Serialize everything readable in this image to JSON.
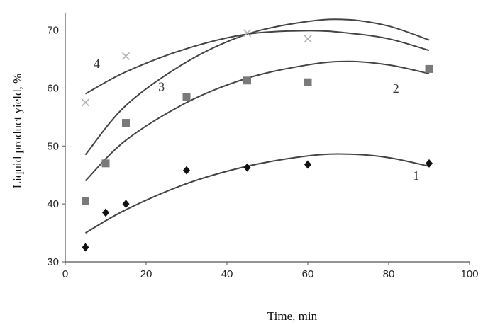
{
  "chart_data": {
    "type": "scatter",
    "xlabel": "Time, min",
    "ylabel": "Liquid product yield, %",
    "xlim": [
      0,
      100
    ],
    "ylim": [
      30,
      73
    ],
    "x_ticks": [
      0,
      20,
      40,
      60,
      80,
      100
    ],
    "y_ticks": [
      30,
      40,
      50,
      60,
      70
    ],
    "grid": false,
    "series": [
      {
        "name": "1",
        "marker": "diamond",
        "color": "#111111",
        "points": [
          [
            5,
            32.5
          ],
          [
            10,
            38.5
          ],
          [
            15,
            40
          ],
          [
            30,
            45.8
          ],
          [
            45,
            46.3
          ],
          [
            60,
            46.8
          ],
          [
            90,
            47
          ]
        ],
        "fit": [
          [
            5,
            35
          ],
          [
            15,
            39
          ],
          [
            30,
            43.5
          ],
          [
            45,
            46.5
          ],
          [
            60,
            48.3
          ],
          [
            70,
            48.6
          ],
          [
            80,
            48
          ],
          [
            90,
            46.5
          ]
        ]
      },
      {
        "name": "2",
        "marker": "square",
        "color": "#7a7a7a",
        "points": [
          [
            5,
            40.5
          ],
          [
            10,
            47
          ],
          [
            15,
            54
          ],
          [
            30,
            58.5
          ],
          [
            45,
            61.3
          ],
          [
            60,
            61
          ],
          [
            90,
            63.3
          ]
        ],
        "fit": [
          [
            5,
            44
          ],
          [
            15,
            51
          ],
          [
            30,
            57.5
          ],
          [
            45,
            61.7
          ],
          [
            60,
            64
          ],
          [
            70,
            64.6
          ],
          [
            80,
            64
          ],
          [
            90,
            62.5
          ]
        ]
      },
      {
        "name": "3",
        "marker": "none",
        "color": "#444444",
        "points": [],
        "fit": [
          [
            5,
            48.5
          ],
          [
            15,
            57
          ],
          [
            30,
            64.5
          ],
          [
            45,
            69.3
          ],
          [
            60,
            71.5
          ],
          [
            70,
            71.8
          ],
          [
            80,
            70.7
          ],
          [
            90,
            68.3
          ]
        ]
      },
      {
        "name": "4",
        "marker": "x",
        "color": "#b0b0b0",
        "points": [
          [
            5,
            57.5
          ],
          [
            15,
            65.5
          ],
          [
            45,
            69.5
          ],
          [
            60,
            68.5
          ]
        ],
        "fit": [
          [
            5,
            59
          ],
          [
            15,
            62.8
          ],
          [
            30,
            66.8
          ],
          [
            45,
            69.3
          ],
          [
            60,
            69.9
          ],
          [
            70,
            69.5
          ],
          [
            80,
            68.5
          ],
          [
            90,
            66.5
          ]
        ]
      }
    ],
    "curve_labels": [
      {
        "text": "1",
        "x": 86,
        "y": 44.2
      },
      {
        "text": "2",
        "x": 81,
        "y": 59.2
      },
      {
        "text": "3",
        "x": 23,
        "y": 59.5
      },
      {
        "text": "4",
        "x": 7,
        "y": 63.5
      }
    ]
  }
}
